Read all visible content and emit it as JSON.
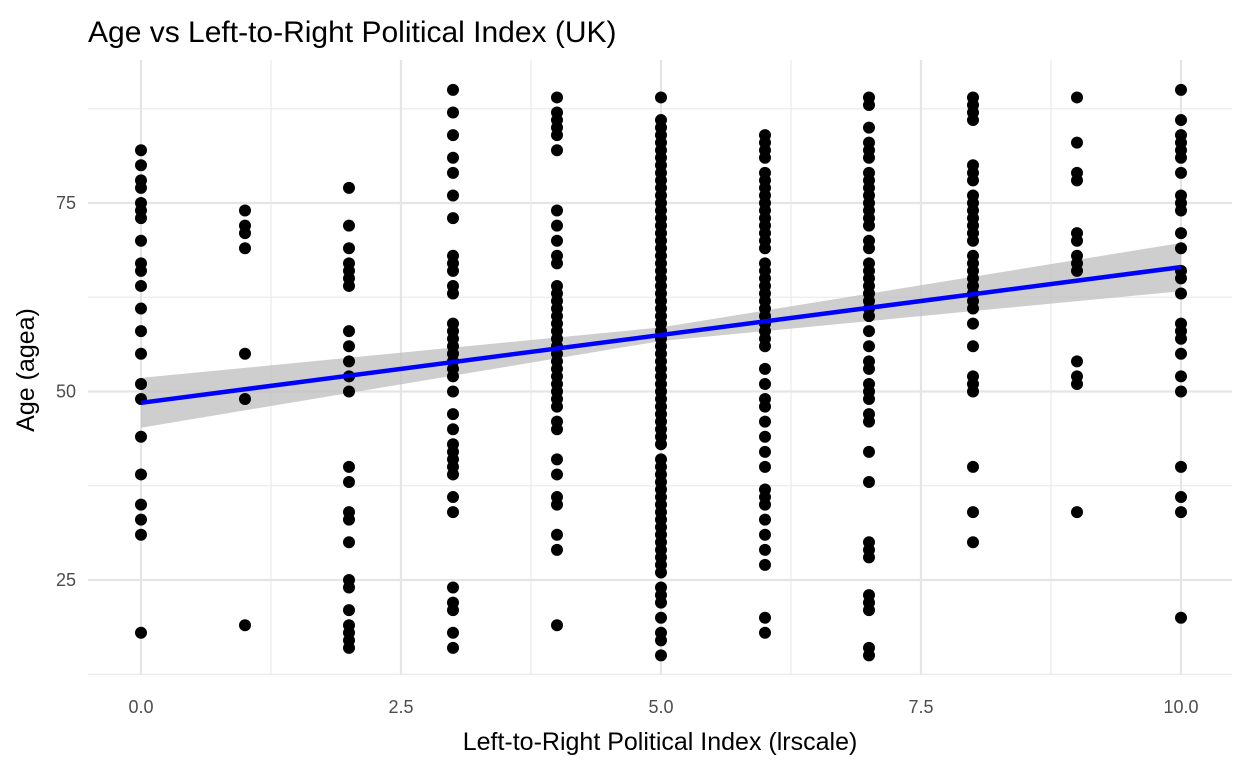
{
  "chart_data": {
    "type": "scatter",
    "title": "Age vs Left-to-Right Political Index (UK)",
    "xlabel": "Left-to-Right Political Index (lrscale)",
    "ylabel": "Age (agea)",
    "xlim": [
      -0.5,
      10.5
    ],
    "ylim": [
      12,
      92
    ],
    "x_ticks": [
      0,
      2.5,
      5,
      7.5,
      10
    ],
    "x_tick_labels": [
      "0.0",
      "2.5",
      "5.0",
      "7.5",
      "10.0"
    ],
    "y_ticks": [
      25,
      50,
      75
    ],
    "y_tick_labels": [
      "25",
      "50",
      "75"
    ],
    "grid": true,
    "legend": "none",
    "point_color": "#000000",
    "points": [
      [
        0,
        82
      ],
      [
        0,
        80
      ],
      [
        0,
        78
      ],
      [
        0,
        77
      ],
      [
        0,
        75
      ],
      [
        0,
        74
      ],
      [
        0,
        73
      ],
      [
        0,
        70
      ],
      [
        0,
        67
      ],
      [
        0,
        66
      ],
      [
        0,
        64
      ],
      [
        0,
        61
      ],
      [
        0,
        58
      ],
      [
        0,
        55
      ],
      [
        0,
        51
      ],
      [
        0,
        49
      ],
      [
        0,
        44
      ],
      [
        0,
        39
      ],
      [
        0,
        35
      ],
      [
        0,
        33
      ],
      [
        0,
        31
      ],
      [
        0,
        18
      ],
      [
        1,
        74
      ],
      [
        1,
        72
      ],
      [
        1,
        71
      ],
      [
        1,
        69
      ],
      [
        1,
        55
      ],
      [
        1,
        49
      ],
      [
        1,
        19
      ],
      [
        2,
        77
      ],
      [
        2,
        72
      ],
      [
        2,
        69
      ],
      [
        2,
        67
      ],
      [
        2,
        66
      ],
      [
        2,
        65
      ],
      [
        2,
        64
      ],
      [
        2,
        58
      ],
      [
        2,
        56
      ],
      [
        2,
        54
      ],
      [
        2,
        52
      ],
      [
        2,
        50
      ],
      [
        2,
        40
      ],
      [
        2,
        38
      ],
      [
        2,
        34
      ],
      [
        2,
        33
      ],
      [
        2,
        30
      ],
      [
        2,
        25
      ],
      [
        2,
        24
      ],
      [
        2,
        21
      ],
      [
        2,
        19
      ],
      [
        2,
        18
      ],
      [
        2,
        17
      ],
      [
        2,
        16
      ],
      [
        3,
        90
      ],
      [
        3,
        87
      ],
      [
        3,
        84
      ],
      [
        3,
        81
      ],
      [
        3,
        79
      ],
      [
        3,
        76
      ],
      [
        3,
        73
      ],
      [
        3,
        68
      ],
      [
        3,
        67
      ],
      [
        3,
        66
      ],
      [
        3,
        64
      ],
      [
        3,
        63
      ],
      [
        3,
        59
      ],
      [
        3,
        58
      ],
      [
        3,
        57
      ],
      [
        3,
        56
      ],
      [
        3,
        55
      ],
      [
        3,
        54
      ],
      [
        3,
        53
      ],
      [
        3,
        52
      ],
      [
        3,
        50
      ],
      [
        3,
        47
      ],
      [
        3,
        45
      ],
      [
        3,
        43
      ],
      [
        3,
        42
      ],
      [
        3,
        41
      ],
      [
        3,
        40
      ],
      [
        3,
        39
      ],
      [
        3,
        36
      ],
      [
        3,
        34
      ],
      [
        3,
        24
      ],
      [
        3,
        22
      ],
      [
        3,
        21
      ],
      [
        3,
        18
      ],
      [
        3,
        16
      ],
      [
        4,
        89
      ],
      [
        4,
        87
      ],
      [
        4,
        86
      ],
      [
        4,
        85
      ],
      [
        4,
        84
      ],
      [
        4,
        82
      ],
      [
        4,
        74
      ],
      [
        4,
        72
      ],
      [
        4,
        70
      ],
      [
        4,
        68
      ],
      [
        4,
        67
      ],
      [
        4,
        64
      ],
      [
        4,
        63
      ],
      [
        4,
        62
      ],
      [
        4,
        61
      ],
      [
        4,
        60
      ],
      [
        4,
        59
      ],
      [
        4,
        58
      ],
      [
        4,
        57
      ],
      [
        4,
        56
      ],
      [
        4,
        55
      ],
      [
        4,
        54
      ],
      [
        4,
        53
      ],
      [
        4,
        52
      ],
      [
        4,
        51
      ],
      [
        4,
        50
      ],
      [
        4,
        49
      ],
      [
        4,
        48
      ],
      [
        4,
        46
      ],
      [
        4,
        45
      ],
      [
        4,
        41
      ],
      [
        4,
        39
      ],
      [
        4,
        36
      ],
      [
        4,
        35
      ],
      [
        4,
        31
      ],
      [
        4,
        29
      ],
      [
        4,
        19
      ],
      [
        5,
        89
      ],
      [
        5,
        86
      ],
      [
        5,
        85
      ],
      [
        5,
        84
      ],
      [
        5,
        83
      ],
      [
        5,
        82
      ],
      [
        5,
        81
      ],
      [
        5,
        80
      ],
      [
        5,
        79
      ],
      [
        5,
        78
      ],
      [
        5,
        77
      ],
      [
        5,
        76
      ],
      [
        5,
        75
      ],
      [
        5,
        74
      ],
      [
        5,
        73
      ],
      [
        5,
        72
      ],
      [
        5,
        71
      ],
      [
        5,
        70
      ],
      [
        5,
        69
      ],
      [
        5,
        68
      ],
      [
        5,
        67
      ],
      [
        5,
        66
      ],
      [
        5,
        65
      ],
      [
        5,
        64
      ],
      [
        5,
        63
      ],
      [
        5,
        62
      ],
      [
        5,
        61
      ],
      [
        5,
        60
      ],
      [
        5,
        59
      ],
      [
        5,
        58
      ],
      [
        5,
        57
      ],
      [
        5,
        56
      ],
      [
        5,
        55
      ],
      [
        5,
        54
      ],
      [
        5,
        53
      ],
      [
        5,
        52
      ],
      [
        5,
        51
      ],
      [
        5,
        50
      ],
      [
        5,
        49
      ],
      [
        5,
        48
      ],
      [
        5,
        47
      ],
      [
        5,
        46
      ],
      [
        5,
        45
      ],
      [
        5,
        44
      ],
      [
        5,
        43
      ],
      [
        5,
        41
      ],
      [
        5,
        40
      ],
      [
        5,
        39
      ],
      [
        5,
        38
      ],
      [
        5,
        37
      ],
      [
        5,
        36
      ],
      [
        5,
        35
      ],
      [
        5,
        34
      ],
      [
        5,
        33
      ],
      [
        5,
        32
      ],
      [
        5,
        31
      ],
      [
        5,
        30
      ],
      [
        5,
        29
      ],
      [
        5,
        28
      ],
      [
        5,
        27
      ],
      [
        5,
        26
      ],
      [
        5,
        24
      ],
      [
        5,
        23
      ],
      [
        5,
        22
      ],
      [
        5,
        20
      ],
      [
        5,
        18
      ],
      [
        5,
        17
      ],
      [
        5,
        15
      ],
      [
        6,
        84
      ],
      [
        6,
        83
      ],
      [
        6,
        82
      ],
      [
        6,
        81
      ],
      [
        6,
        79
      ],
      [
        6,
        78
      ],
      [
        6,
        77
      ],
      [
        6,
        76
      ],
      [
        6,
        75
      ],
      [
        6,
        74
      ],
      [
        6,
        73
      ],
      [
        6,
        72
      ],
      [
        6,
        71
      ],
      [
        6,
        70
      ],
      [
        6,
        69
      ],
      [
        6,
        67
      ],
      [
        6,
        66
      ],
      [
        6,
        65
      ],
      [
        6,
        64
      ],
      [
        6,
        63
      ],
      [
        6,
        62
      ],
      [
        6,
        61
      ],
      [
        6,
        60
      ],
      [
        6,
        59
      ],
      [
        6,
        58
      ],
      [
        6,
        57
      ],
      [
        6,
        56
      ],
      [
        6,
        53
      ],
      [
        6,
        51
      ],
      [
        6,
        49
      ],
      [
        6,
        48
      ],
      [
        6,
        46
      ],
      [
        6,
        44
      ],
      [
        6,
        42
      ],
      [
        6,
        40
      ],
      [
        6,
        37
      ],
      [
        6,
        36
      ],
      [
        6,
        35
      ],
      [
        6,
        33
      ],
      [
        6,
        31
      ],
      [
        6,
        29
      ],
      [
        6,
        27
      ],
      [
        6,
        20
      ],
      [
        6,
        18
      ],
      [
        7,
        89
      ],
      [
        7,
        88
      ],
      [
        7,
        85
      ],
      [
        7,
        83
      ],
      [
        7,
        82
      ],
      [
        7,
        81
      ],
      [
        7,
        79
      ],
      [
        7,
        78
      ],
      [
        7,
        77
      ],
      [
        7,
        76
      ],
      [
        7,
        75
      ],
      [
        7,
        74
      ],
      [
        7,
        73
      ],
      [
        7,
        72
      ],
      [
        7,
        70
      ],
      [
        7,
        69
      ],
      [
        7,
        67
      ],
      [
        7,
        66
      ],
      [
        7,
        65
      ],
      [
        7,
        64
      ],
      [
        7,
        63
      ],
      [
        7,
        62
      ],
      [
        7,
        61
      ],
      [
        7,
        60
      ],
      [
        7,
        58
      ],
      [
        7,
        56
      ],
      [
        7,
        54
      ],
      [
        7,
        53
      ],
      [
        7,
        51
      ],
      [
        7,
        50
      ],
      [
        7,
        49
      ],
      [
        7,
        47
      ],
      [
        7,
        46
      ],
      [
        7,
        42
      ],
      [
        7,
        38
      ],
      [
        7,
        30
      ],
      [
        7,
        29
      ],
      [
        7,
        28
      ],
      [
        7,
        23
      ],
      [
        7,
        22
      ],
      [
        7,
        21
      ],
      [
        7,
        16
      ],
      [
        7,
        15
      ],
      [
        8,
        89
      ],
      [
        8,
        88
      ],
      [
        8,
        87
      ],
      [
        8,
        86
      ],
      [
        8,
        80
      ],
      [
        8,
        79
      ],
      [
        8,
        78
      ],
      [
        8,
        76
      ],
      [
        8,
        75
      ],
      [
        8,
        74
      ],
      [
        8,
        73
      ],
      [
        8,
        72
      ],
      [
        8,
        71
      ],
      [
        8,
        70
      ],
      [
        8,
        68
      ],
      [
        8,
        67
      ],
      [
        8,
        66
      ],
      [
        8,
        65
      ],
      [
        8,
        64
      ],
      [
        8,
        63
      ],
      [
        8,
        62
      ],
      [
        8,
        61
      ],
      [
        8,
        59
      ],
      [
        8,
        56
      ],
      [
        8,
        52
      ],
      [
        8,
        51
      ],
      [
        8,
        50
      ],
      [
        8,
        40
      ],
      [
        8,
        34
      ],
      [
        8,
        30
      ],
      [
        9,
        89
      ],
      [
        9,
        83
      ],
      [
        9,
        79
      ],
      [
        9,
        78
      ],
      [
        9,
        71
      ],
      [
        9,
        70
      ],
      [
        9,
        68
      ],
      [
        9,
        67
      ],
      [
        9,
        66
      ],
      [
        9,
        54
      ],
      [
        9,
        52
      ],
      [
        9,
        51
      ],
      [
        9,
        34
      ],
      [
        10,
        90
      ],
      [
        10,
        86
      ],
      [
        10,
        84
      ],
      [
        10,
        83
      ],
      [
        10,
        82
      ],
      [
        10,
        81
      ],
      [
        10,
        79
      ],
      [
        10,
        76
      ],
      [
        10,
        75
      ],
      [
        10,
        74
      ],
      [
        10,
        71
      ],
      [
        10,
        69
      ],
      [
        10,
        66
      ],
      [
        10,
        65
      ],
      [
        10,
        63
      ],
      [
        10,
        59
      ],
      [
        10,
        58
      ],
      [
        10,
        57
      ],
      [
        10,
        55
      ],
      [
        10,
        52
      ],
      [
        10,
        50
      ],
      [
        10,
        40
      ],
      [
        10,
        36
      ],
      [
        10,
        34
      ],
      [
        10,
        20
      ]
    ],
    "smooth": {
      "method": "linear",
      "color": "#0000ff",
      "band_color": "#bebebe",
      "line": [
        [
          0,
          48.5
        ],
        [
          10,
          66.5
        ]
      ],
      "ci_lower": [
        [
          0,
          45.2
        ],
        [
          5,
          56.7
        ],
        [
          10,
          63.3
        ]
      ],
      "ci_upper": [
        [
          0,
          51.8
        ],
        [
          5,
          58.5
        ],
        [
          10,
          69.7
        ]
      ]
    }
  }
}
